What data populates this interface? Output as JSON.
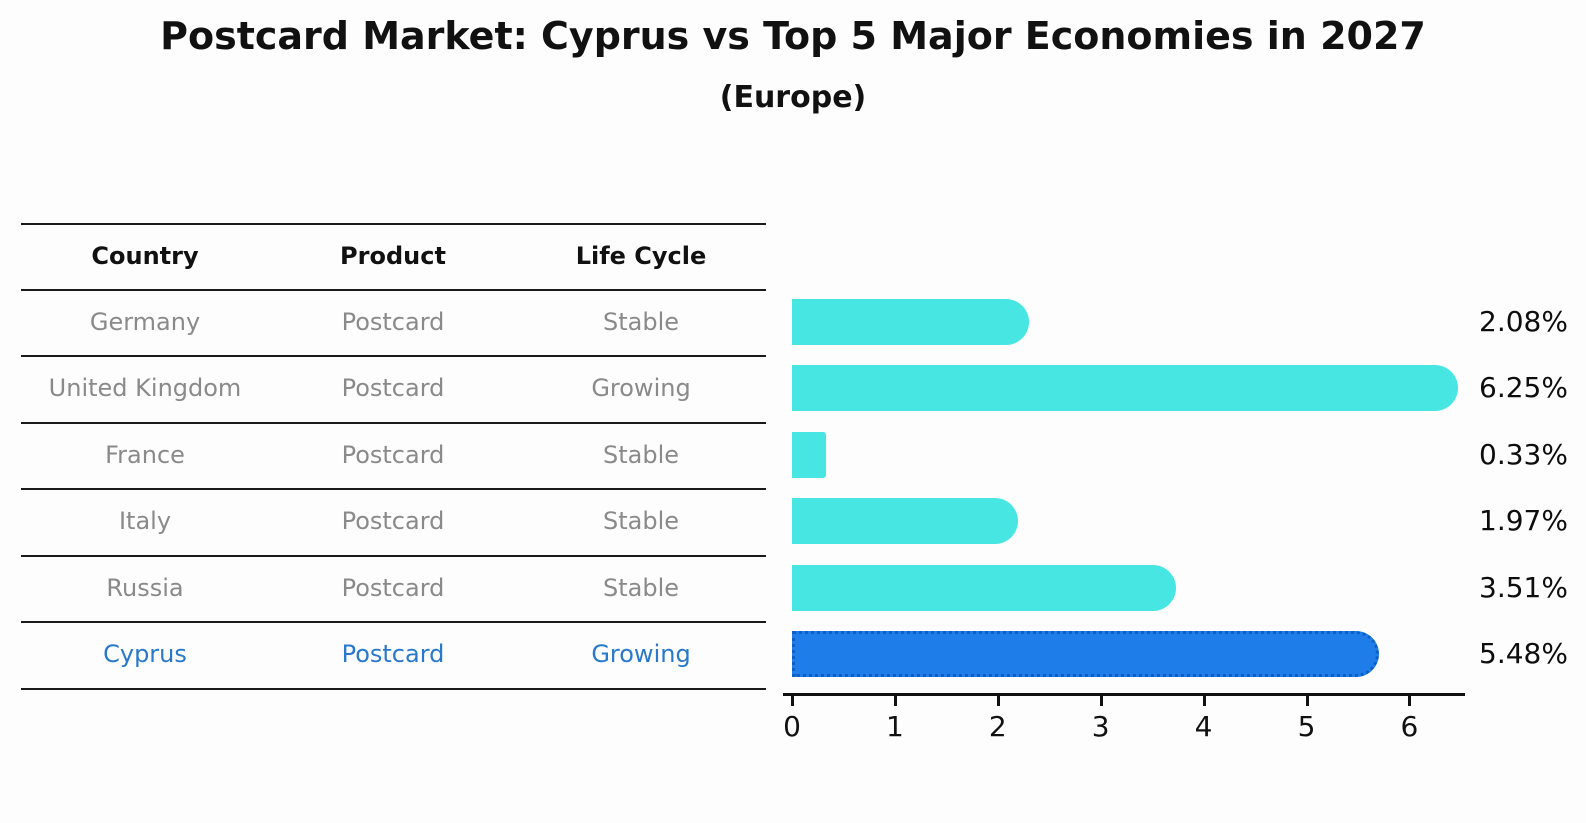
{
  "title": "Postcard Market: Cyprus vs Top 5 Major Economies in 2027",
  "subtitle": "(Europe)",
  "table": {
    "headers": [
      "Country",
      "Product",
      "Life Cycle"
    ]
  },
  "chart_data": {
    "type": "bar",
    "orientation": "horizontal",
    "title": "Postcard Market: Cyprus vs Top 5 Major Economies in 2027 (Europe)",
    "xlabel": "",
    "ylabel": "",
    "xlim": [
      0,
      6.55
    ],
    "x_ticks": [
      "0",
      "1",
      "2",
      "3",
      "4",
      "5",
      "6"
    ],
    "grid": false,
    "legend": false,
    "rows": [
      {
        "country": "Germany",
        "product": "Postcard",
        "life_cycle": "Stable",
        "value": 2.08,
        "label": "2.08%",
        "highlight": false
      },
      {
        "country": "United Kingdom",
        "product": "Postcard",
        "life_cycle": "Growing",
        "value": 6.25,
        "label": "6.25%",
        "highlight": false
      },
      {
        "country": "France",
        "product": "Postcard",
        "life_cycle": "Stable",
        "value": 0.33,
        "label": "0.33%",
        "highlight": false
      },
      {
        "country": "Italy",
        "product": "Postcard",
        "life_cycle": "Stable",
        "value": 1.97,
        "label": "1.97%",
        "highlight": false
      },
      {
        "country": "Russia",
        "product": "Postcard",
        "life_cycle": "Stable",
        "value": 3.51,
        "label": "3.51%",
        "highlight": false
      },
      {
        "country": "Cyprus",
        "product": "Postcard",
        "life_cycle": "Growing",
        "value": 5.48,
        "label": "5.48%",
        "highlight": true
      }
    ]
  },
  "colors": {
    "bar": "#47E6E2",
    "highlight_bar": "#1E7DE8",
    "highlight_border": "#0D5FC6",
    "row_text": "#8a8a8a",
    "highlight_text": "#2878CC",
    "header_text": "#111111",
    "line": "#1a1a1a",
    "value_text": "#0d0d0d"
  }
}
